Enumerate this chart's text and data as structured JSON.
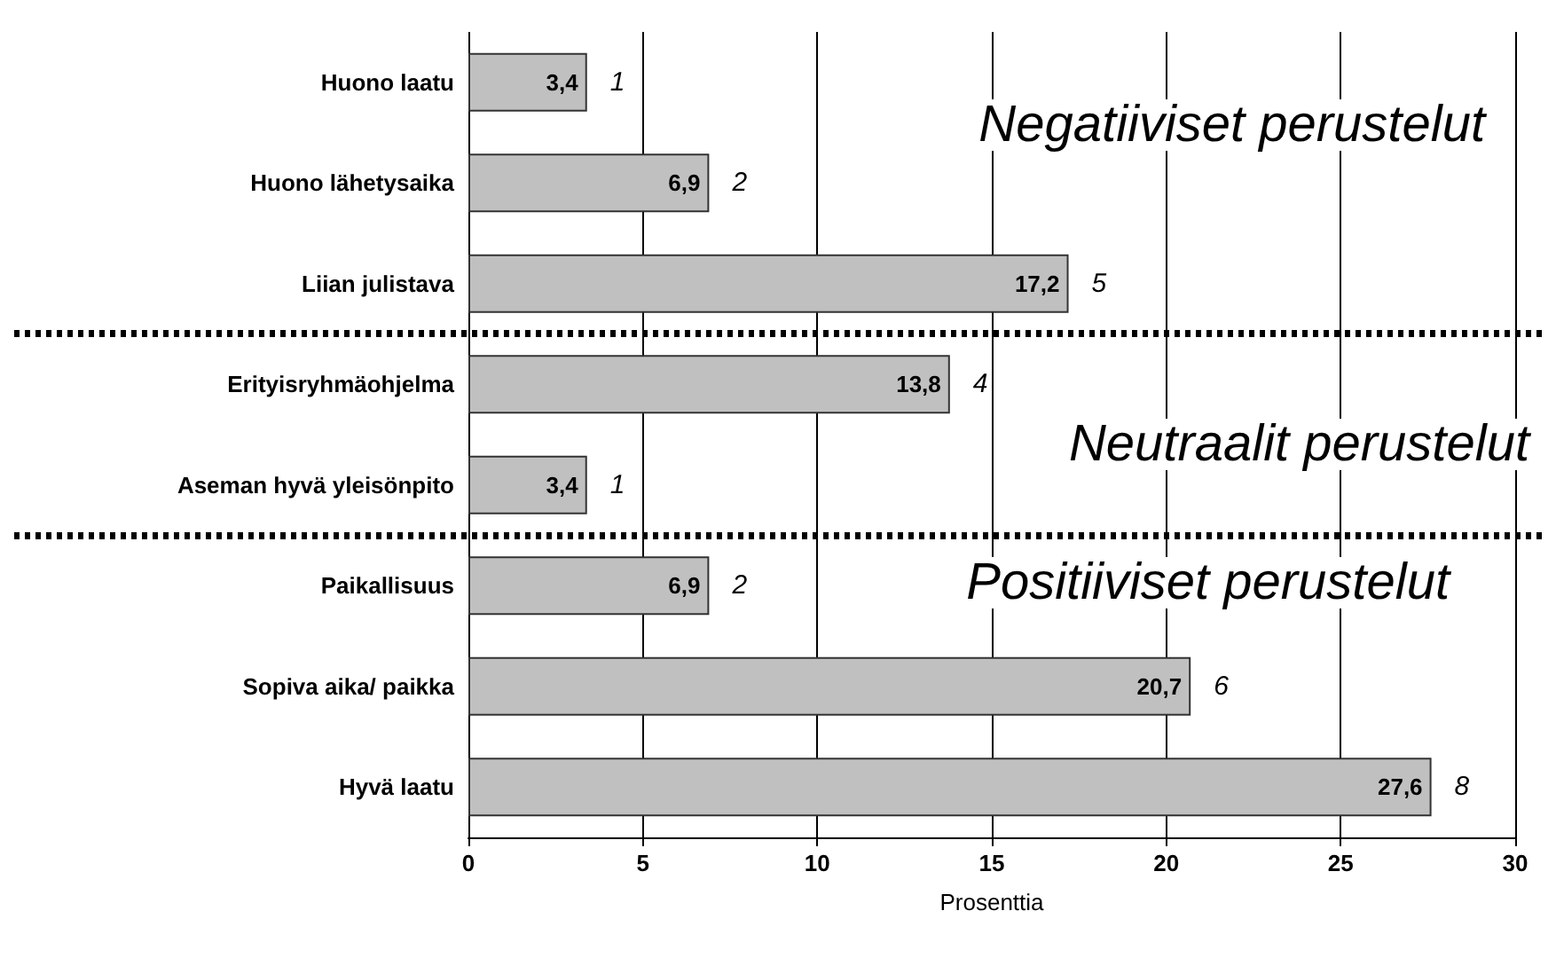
{
  "chart_data": {
    "type": "bar",
    "orientation": "horizontal",
    "categories": [
      "Huono laatu",
      "Huono lähetysaika",
      "Liian julistava",
      "Erityisryhmäohjelma",
      "Aseman hyvä yleisönpito",
      "Paikallisuus",
      "Sopiva aika/ paikka",
      "Hyvä laatu"
    ],
    "values": [
      3.4,
      6.9,
      17.2,
      13.8,
      3.4,
      6.9,
      20.7,
      27.6
    ],
    "value_labels": [
      "3,4",
      "6,9",
      "17,2",
      "13,8",
      "3,4",
      "6,9",
      "20,7",
      "27,6"
    ],
    "color": "#c0c0c0",
    "xlabel": "Prosenttia",
    "xlim": [
      0,
      30
    ],
    "xticks": [
      0,
      5,
      10,
      15,
      20,
      25,
      30
    ],
    "grid": "x",
    "annotations": [
      {
        "text": "1",
        "x": 3.4,
        "y": "Huono laatu"
      },
      {
        "text": "2",
        "x": 6.9,
        "y": "Huono lähetysaika"
      },
      {
        "text": "5",
        "x": 17.2,
        "y": "Liian julistava"
      },
      {
        "text": "4",
        "x": 13.8,
        "y": "Erityisryhmäohjelma"
      },
      {
        "text": "1",
        "x": 3.4,
        "y": "Aseman hyvä yleisönpito"
      },
      {
        "text": "2",
        "x": 6.9,
        "y": "Paikallisuus"
      },
      {
        "text": "6",
        "x": 20.7,
        "y": "Sopiva aika/ paikka"
      },
      {
        "text": "8",
        "x": 27.6,
        "y": "Hyvä laatu"
      },
      "Negatiiviset perustelut",
      "Neutraalit perustelut",
      "Positiiviset perustelut"
    ]
  }
}
